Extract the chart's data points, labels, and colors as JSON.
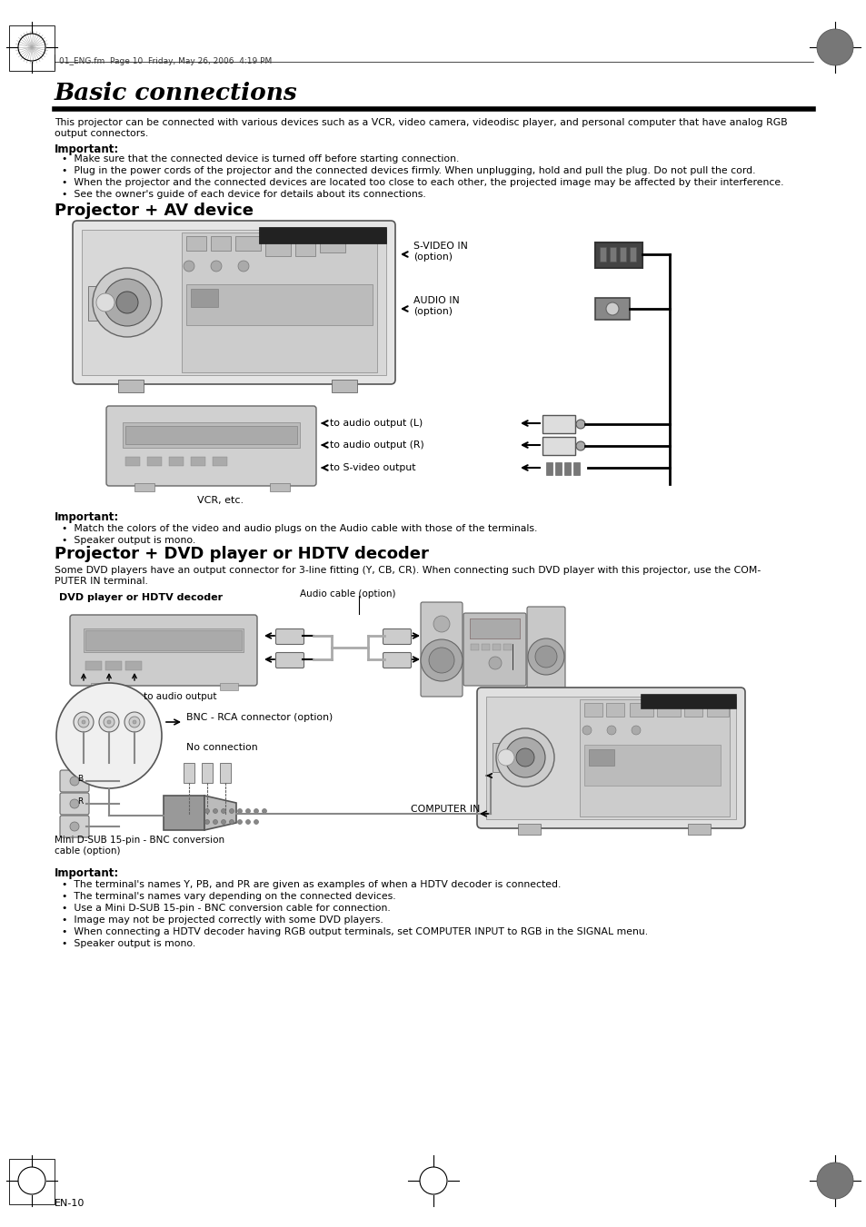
{
  "title": "Basic connections",
  "header_text": "01_ENG.fm  Page 10  Friday, May 26, 2006  4:19 PM",
  "intro_text": "This projector can be connected with various devices such as a VCR, video camera, videodisc player, and personal computer that have analog RGB\noutput connectors.",
  "important1_title": "Important:",
  "important1_bullets": [
    "Make sure that the connected device is turned off before starting connection.",
    "Plug in the power cords of the projector and the connected devices firmly. When unplugging, hold and pull the plug. Do not pull the cord.",
    "When the projector and the connected devices are located too close to each other, the projected image may be affected by their interference.",
    "See the owner's guide of each device for details about its connections."
  ],
  "section1_title": "Projector + AV device",
  "s_video_in_label": "S-VIDEO IN\n(option)",
  "audio_in_label": "AUDIO IN\n(option)",
  "to_audio_L": "to audio output (L)",
  "to_audio_R": "to audio output (R)",
  "to_s_video": "to S-video output",
  "vcr_label": "VCR, etc.",
  "important2_title": "Important:",
  "important2_bullets": [
    "Match the colors of the video and audio plugs on the Audio cable with those of the terminals.",
    "Speaker output is mono."
  ],
  "section2_title": "Projector + DVD player or HDTV decoder",
  "section2_intro": "Some DVD players have an output connector for 3-line fitting (Y, CB, CR). When connecting such DVD player with this projector, use the COM-\nPUTER IN terminal.",
  "dvd_label": "DVD player or HDTV decoder",
  "audio_cable_label": "Audio cable (option)",
  "to_audio_output": "to audio output",
  "bnc_rca_label": "BNC - RCA connector (option)",
  "no_connection_label": "No connection",
  "computer_in_label": "COMPUTER IN",
  "mini_dsub_label": "Mini D-SUB 15-pin - BNC conversion\ncable (option)",
  "important3_title": "Important:",
  "important3_bullets": [
    "The terminal's names Y, PB, and PR are given as examples of when a HDTV decoder is connected.",
    "The terminal's names vary depending on the connected devices.",
    "Use a Mini D-SUB 15-pin - BNC conversion cable for connection.",
    "Image may not be projected correctly with some DVD players.",
    "When connecting a HDTV decoder having RGB output terminals, set COMPUTER INPUT to RGB in the SIGNAL menu.",
    "Speaker output is mono."
  ],
  "footer_text": "EN-10",
  "bg_color": "#ffffff"
}
